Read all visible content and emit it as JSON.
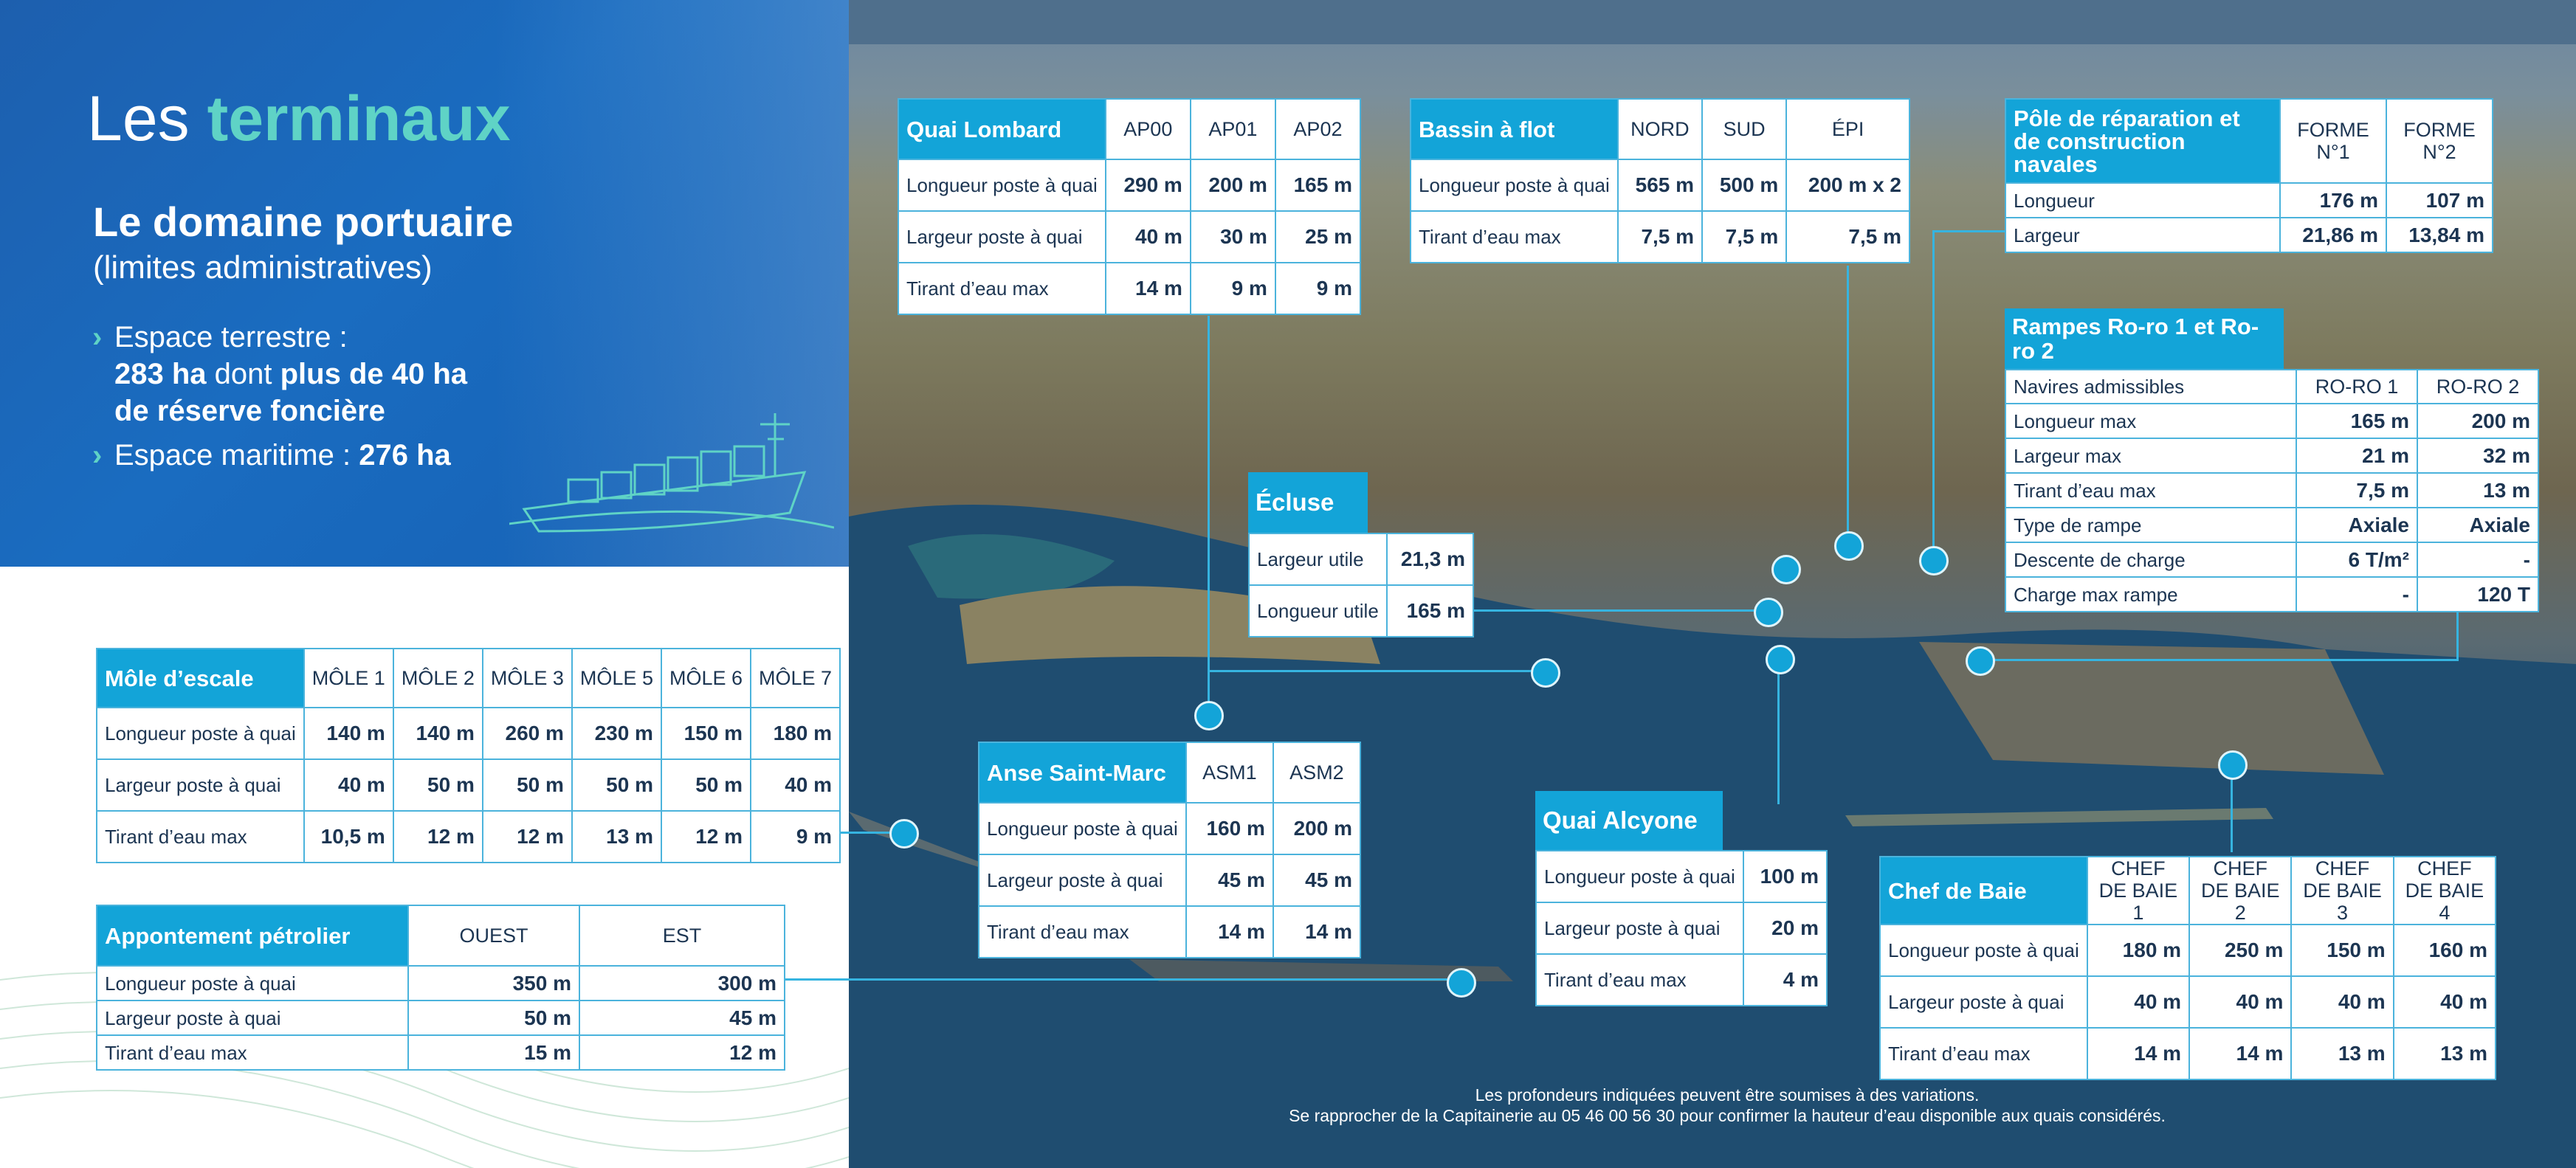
{
  "header": {
    "title_part1": "Les",
    "title_part2": "terminaux",
    "domain_title": "Le domaine portuaire",
    "domain_subtitle": "(limites administratives)",
    "bullet1_line1": "Espace terrestre :",
    "bullet1_val1": "283 ha",
    "bullet1_mid": " dont ",
    "bullet1_val2": "plus de 40 ha",
    "bullet1_line3": "de réserve foncière",
    "bullet2_label": "Espace maritime : ",
    "bullet2_val": "276 ha"
  },
  "mole": {
    "title": "Môle d’escale",
    "cols": [
      "MÔLE 1",
      "MÔLE 2",
      "MÔLE 3",
      "MÔLE 5",
      "MÔLE 6",
      "MÔLE 7"
    ],
    "rows": [
      {
        "label": "Longueur poste à quai",
        "values": [
          "140 m",
          "140 m",
          "260 m",
          "230 m",
          "150 m",
          "180 m"
        ]
      },
      {
        "label": "Largeur poste à quai",
        "values": [
          "40 m",
          "50 m",
          "50 m",
          "50 m",
          "50 m",
          "40 m"
        ]
      },
      {
        "label": "Tirant d’eau max",
        "values": [
          "10,5 m",
          "12 m",
          "12 m",
          "13 m",
          "12 m",
          "9 m"
        ]
      }
    ]
  },
  "petrolier": {
    "title": "Appontement pétrolier",
    "cols": [
      "OUEST",
      "EST"
    ],
    "rows": [
      {
        "label": "Longueur poste à quai",
        "values": [
          "350 m",
          "300 m"
        ]
      },
      {
        "label": "Largeur poste à quai",
        "values": [
          "50 m",
          "45 m"
        ]
      },
      {
        "label": "Tirant d’eau max",
        "values": [
          "15 m",
          "12 m"
        ]
      }
    ]
  },
  "lombard": {
    "title": "Quai Lombard",
    "cols": [
      "AP00",
      "AP01",
      "AP02"
    ],
    "rows": [
      {
        "label": "Longueur poste à quai",
        "values": [
          "290 m",
          "200 m",
          "165 m"
        ]
      },
      {
        "label": "Largeur poste à quai",
        "values": [
          "40 m",
          "30 m",
          "25 m"
        ]
      },
      {
        "label": "Tirant d’eau max",
        "values": [
          "14 m",
          "9 m",
          "9 m"
        ]
      }
    ]
  },
  "bassin": {
    "title": "Bassin à flot",
    "cols": [
      "NORD",
      "SUD",
      "ÉPI"
    ],
    "rows": [
      {
        "label": "Longueur poste à quai",
        "values": [
          "565 m",
          "500 m",
          "200 m x 2"
        ]
      },
      {
        "label": "Tirant d’eau max",
        "values": [
          "7,5 m",
          "7,5 m",
          "7,5 m"
        ]
      }
    ]
  },
  "pole": {
    "title": "Pôle de réparation et de construction navales",
    "cols": [
      "FORME N°1",
      "FORME N°2"
    ],
    "rows": [
      {
        "label": "Longueur",
        "values": [
          "176 m",
          "107 m"
        ]
      },
      {
        "label": "Largeur",
        "values": [
          "21,86 m",
          "13,84 m"
        ]
      }
    ]
  },
  "rampes": {
    "title": "Rampes Ro-ro 1 et Ro-ro 2",
    "cols": [
      "RO-RO 1",
      "RO-RO 2"
    ],
    "rows": [
      {
        "label": "Navires admissibles",
        "values": [
          "RO-RO 1",
          "RO-RO 2"
        ]
      },
      {
        "label": "Longueur max",
        "values": [
          "165 m",
          "200 m"
        ]
      },
      {
        "label": "Largeur max",
        "values": [
          "21 m",
          "32 m"
        ]
      },
      {
        "label": "Tirant d’eau max",
        "values": [
          "7,5 m",
          "13 m"
        ]
      },
      {
        "label": "Type de rampe",
        "values": [
          "Axiale",
          "Axiale"
        ]
      },
      {
        "label": "Descente de charge",
        "values": [
          "6 T/m²",
          "-"
        ]
      },
      {
        "label": "Charge max rampe",
        "values": [
          "-",
          "120 T"
        ]
      }
    ]
  },
  "ecluse": {
    "title": "Écluse",
    "rows": [
      {
        "label": "Largeur utile",
        "value": "21,3 m"
      },
      {
        "label": "Longueur utile",
        "value": "165 m"
      }
    ]
  },
  "anse": {
    "title": "Anse Saint-Marc",
    "cols": [
      "ASM1",
      "ASM2"
    ],
    "rows": [
      {
        "label": "Longueur poste à quai",
        "values": [
          "160 m",
          "200 m"
        ]
      },
      {
        "label": "Largeur poste à quai",
        "values": [
          "45 m",
          "45 m"
        ]
      },
      {
        "label": "Tirant d’eau max",
        "values": [
          "14 m",
          "14 m"
        ]
      }
    ]
  },
  "alcyone": {
    "title": "Quai Alcyone",
    "rows": [
      {
        "label": "Longueur poste à quai",
        "value": "100 m"
      },
      {
        "label": "Largeur poste à quai",
        "value": "20 m"
      },
      {
        "label": "Tirant d’eau max",
        "value": "4 m"
      }
    ]
  },
  "chef": {
    "title": "Chef de Baie",
    "cols": [
      "CHEF DE BAIE 1",
      "CHEF DE BAIE 2",
      "CHEF DE BAIE 3",
      "CHEF DE BAIE 4"
    ],
    "rows": [
      {
        "label": "Longueur poste à quai",
        "values": [
          "180 m",
          "250 m",
          "150 m",
          "160 m"
        ]
      },
      {
        "label": "Largeur poste à quai",
        "values": [
          "40 m",
          "40 m",
          "40 m",
          "40 m"
        ]
      },
      {
        "label": "Tirant d’eau max",
        "values": [
          "14 m",
          "14 m",
          "13 m",
          "13 m"
        ]
      }
    ]
  },
  "footnote": {
    "line1": "Les profondeurs indiquées peuvent être soumises à des variations.",
    "line2": "Se rapprocher de la Capitainerie au 05 46 00 56 30 pour confirmer la hauteur d’eau disponible aux quais considérés."
  },
  "colors": {
    "brand_blue": "#1a6cc0",
    "accent_cyan": "#13a4d8",
    "accent_teal": "#5fd3c6",
    "text_navy": "#1c3552"
  }
}
